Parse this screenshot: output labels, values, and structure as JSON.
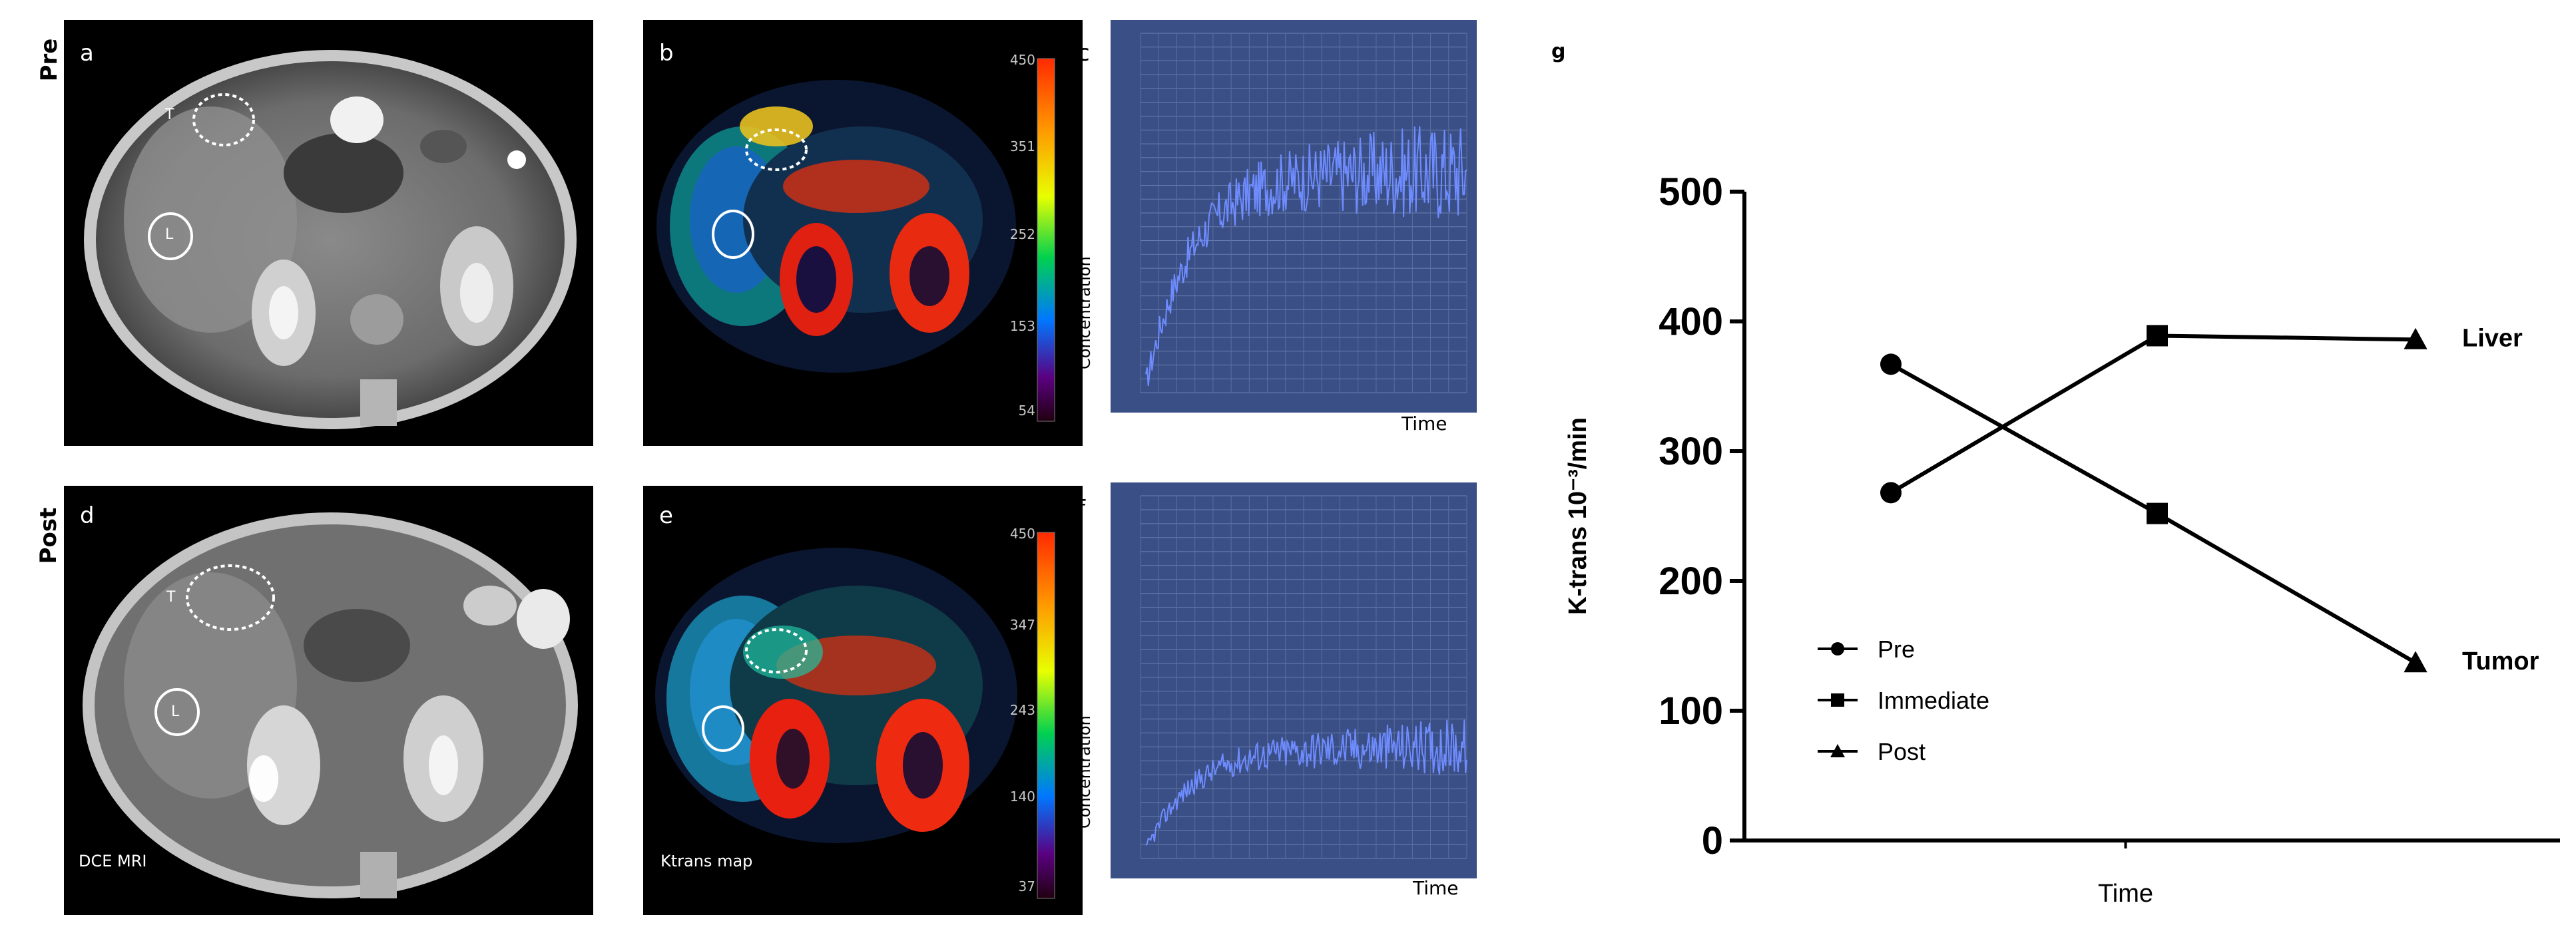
{
  "figure": {
    "row_labels": {
      "top": "Pre",
      "bottom": "Post"
    },
    "panel_letters": {
      "a": "a",
      "b": "b",
      "c": "c",
      "d": "d",
      "e": "e",
      "f": "f",
      "g": "g"
    },
    "image_captions": {
      "dce": "DCE MRI",
      "ktrans": "Ktrans map"
    },
    "roi_labels": {
      "tumor": "T",
      "liver": "L"
    },
    "colorbar_top": {
      "ticks": [
        "450",
        "351",
        "252",
        "153",
        "54"
      ]
    },
    "colorbar_bottom": {
      "ticks": [
        "450",
        "347",
        "243",
        "140",
        "37"
      ]
    },
    "curve_labels": {
      "ylabel": "Concentration",
      "xlabel": "Time"
    }
  },
  "colors": {
    "curve_bg": "#3a4f86",
    "curve_line": "#6f8cff",
    "roi": "#ffffff"
  },
  "chart_data": {
    "type": "line",
    "categories": [
      "Pre",
      "Immediate",
      "Post"
    ],
    "series": [
      {
        "name": "Liver",
        "values": [
          268,
          389,
          386
        ]
      },
      {
        "name": "Tumor",
        "values": [
          367,
          252,
          137
        ]
      }
    ],
    "marker_legend": [
      {
        "label": "Pre",
        "marker": "circle"
      },
      {
        "label": "Immediate",
        "marker": "square"
      },
      {
        "label": "Post",
        "marker": "triangle"
      }
    ],
    "title": "",
    "xlabel": "Time",
    "ylabel": "K-trans 10⁻³/min",
    "ylim": [
      0,
      500
    ],
    "yticks": [
      "0",
      "100",
      "200",
      "300",
      "400",
      "500"
    ],
    "grid": false,
    "legend_position": "lower-left"
  }
}
